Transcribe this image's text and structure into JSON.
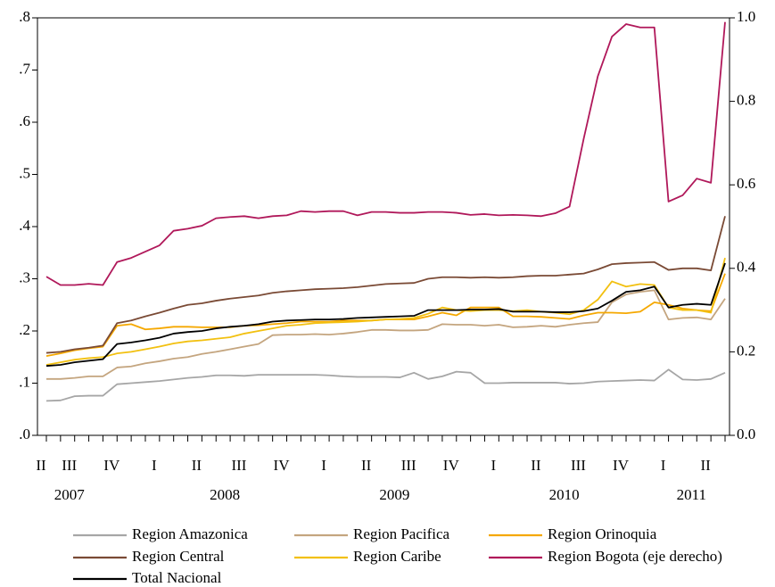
{
  "chart_data": {
    "type": "line",
    "categories": [
      "II",
      null,
      "III",
      null,
      null,
      "IV",
      null,
      null,
      "I",
      null,
      null,
      "II",
      null,
      null,
      "III",
      null,
      null,
      "IV",
      null,
      null,
      "I",
      null,
      null,
      "II",
      null,
      null,
      "III",
      null,
      null,
      "IV",
      null,
      null,
      "I",
      null,
      null,
      "II",
      null,
      null,
      "III",
      null,
      null,
      "IV",
      null,
      null,
      "I",
      null,
      null,
      "II",
      null
    ],
    "year_labels": [
      null,
      null,
      "2007",
      null,
      null,
      null,
      null,
      null,
      null,
      null,
      null,
      null,
      null,
      "2008",
      null,
      null,
      null,
      null,
      null,
      null,
      null,
      null,
      null,
      null,
      null,
      "2009",
      null,
      null,
      null,
      null,
      null,
      null,
      null,
      null,
      null,
      null,
      null,
      "2010",
      null,
      null,
      null,
      null,
      null,
      null,
      null,
      null,
      "2011",
      null,
      null
    ],
    "ylim": [
      0,
      0.8
    ],
    "yticks": [
      {
        "value": 0,
        "label": ".0"
      },
      {
        "value": 0.1,
        "label": ".1"
      },
      {
        "value": 0.2,
        "label": ".2"
      },
      {
        "value": 0.3,
        "label": ".3"
      },
      {
        "value": 0.4,
        "label": ".4"
      },
      {
        "value": 0.5,
        "label": ".5"
      },
      {
        "value": 0.6,
        "label": ".6"
      },
      {
        "value": 0.7,
        "label": ".7"
      },
      {
        "value": 0.8,
        "label": ".8"
      }
    ],
    "y2lim": [
      0,
      1.0
    ],
    "y2ticks": [
      {
        "value": 0,
        "label": "0.0"
      },
      {
        "value": 0.2,
        "label": "0.2"
      },
      {
        "value": 0.4,
        "label": "0.4"
      },
      {
        "value": 0.6,
        "label": "0.6"
      },
      {
        "value": 0.8,
        "label": "0.8"
      },
      {
        "value": 1.0,
        "label": "1.0"
      }
    ],
    "grid": false,
    "legend": "bottom",
    "series": [
      {
        "name": "Region Amazonica",
        "color": "#a6a6a6",
        "values": [
          0.066,
          0.067,
          0.075,
          0.076,
          0.076,
          0.098,
          0.1,
          0.102,
          0.104,
          0.107,
          0.11,
          0.112,
          0.115,
          0.115,
          0.114,
          0.116,
          0.116,
          0.116,
          0.116,
          0.116,
          0.115,
          0.113,
          0.112,
          0.112,
          0.112,
          0.111,
          0.12,
          0.108,
          0.113,
          0.122,
          0.12,
          0.1,
          0.1,
          0.101,
          0.101,
          0.101,
          0.101,
          0.099,
          0.1,
          0.103,
          0.104,
          0.105,
          0.106,
          0.105,
          0.126,
          0.107,
          0.106,
          0.108,
          0.12
        ]
      },
      {
        "name": "Region Pacifica",
        "color": "#c4a57f",
        "values": [
          0.108,
          0.108,
          0.11,
          0.113,
          0.113,
          0.13,
          0.132,
          0.138,
          0.142,
          0.147,
          0.15,
          0.156,
          0.16,
          0.165,
          0.17,
          0.175,
          0.192,
          0.193,
          0.193,
          0.194,
          0.193,
          0.195,
          0.198,
          0.202,
          0.202,
          0.201,
          0.201,
          0.202,
          0.213,
          0.212,
          0.212,
          0.21,
          0.212,
          0.207,
          0.208,
          0.21,
          0.208,
          0.212,
          0.215,
          0.217,
          0.255,
          0.27,
          0.275,
          0.278,
          0.222,
          0.225,
          0.226,
          0.222,
          0.262
        ]
      },
      {
        "name": "Region Orinoquia",
        "color": "#f5a800",
        "values": [
          0.152,
          0.157,
          0.163,
          0.167,
          0.17,
          0.21,
          0.213,
          0.203,
          0.205,
          0.208,
          0.208,
          0.207,
          0.207,
          0.207,
          0.21,
          0.211,
          0.213,
          0.215,
          0.218,
          0.218,
          0.218,
          0.22,
          0.22,
          0.22,
          0.222,
          0.222,
          0.222,
          0.228,
          0.235,
          0.23,
          0.245,
          0.245,
          0.245,
          0.228,
          0.228,
          0.227,
          0.225,
          0.223,
          0.23,
          0.235,
          0.235,
          0.234,
          0.237,
          0.255,
          0.25,
          0.243,
          0.24,
          0.238,
          0.31
        ]
      },
      {
        "name": "Region Central",
        "color": "#7a4a35",
        "values": [
          0.158,
          0.16,
          0.165,
          0.168,
          0.172,
          0.215,
          0.22,
          0.228,
          0.235,
          0.243,
          0.25,
          0.253,
          0.258,
          0.262,
          0.265,
          0.268,
          0.273,
          0.276,
          0.278,
          0.28,
          0.281,
          0.282,
          0.284,
          0.287,
          0.29,
          0.291,
          0.292,
          0.3,
          0.303,
          0.303,
          0.302,
          0.303,
          0.302,
          0.303,
          0.305,
          0.306,
          0.306,
          0.308,
          0.31,
          0.318,
          0.328,
          0.33,
          0.331,
          0.332,
          0.317,
          0.32,
          0.32,
          0.316,
          0.42
        ]
      },
      {
        "name": "Region Caribe",
        "color": "#f2c010",
        "values": [
          0.135,
          0.14,
          0.145,
          0.148,
          0.15,
          0.157,
          0.16,
          0.165,
          0.17,
          0.176,
          0.18,
          0.182,
          0.185,
          0.188,
          0.195,
          0.2,
          0.205,
          0.21,
          0.212,
          0.215,
          0.216,
          0.217,
          0.218,
          0.22,
          0.222,
          0.223,
          0.225,
          0.233,
          0.245,
          0.24,
          0.238,
          0.24,
          0.24,
          0.238,
          0.24,
          0.237,
          0.235,
          0.232,
          0.24,
          0.26,
          0.295,
          0.285,
          0.29,
          0.288,
          0.245,
          0.24,
          0.24,
          0.235,
          0.34
        ]
      },
      {
        "name": "Region Bogota (eje derecho)",
        "color": "#b0185a",
        "axis": "y2",
        "values": [
          0.38,
          0.36,
          0.36,
          0.363,
          0.36,
          0.415,
          0.425,
          0.44,
          0.455,
          0.49,
          0.495,
          0.502,
          0.52,
          0.523,
          0.525,
          0.52,
          0.525,
          0.527,
          0.537,
          0.535,
          0.537,
          0.537,
          0.527,
          0.535,
          0.535,
          0.533,
          0.533,
          0.535,
          0.535,
          0.533,
          0.528,
          0.53,
          0.527,
          0.528,
          0.527,
          0.525,
          0.532,
          0.548,
          0.71,
          0.86,
          0.955,
          0.985,
          0.977,
          0.977,
          0.56,
          0.575,
          0.615,
          0.605,
          0.99
        ]
      },
      {
        "name": "Total Nacional",
        "color": "#000000",
        "values": [
          0.133,
          0.135,
          0.14,
          0.143,
          0.146,
          0.175,
          0.178,
          0.182,
          0.187,
          0.195,
          0.198,
          0.2,
          0.205,
          0.208,
          0.21,
          0.213,
          0.218,
          0.22,
          0.221,
          0.222,
          0.222,
          0.223,
          0.225,
          0.226,
          0.227,
          0.228,
          0.229,
          0.24,
          0.24,
          0.24,
          0.241,
          0.241,
          0.242,
          0.237,
          0.237,
          0.237,
          0.236,
          0.236,
          0.238,
          0.243,
          0.258,
          0.275,
          0.278,
          0.285,
          0.245,
          0.25,
          0.252,
          0.25,
          0.33
        ]
      }
    ]
  }
}
